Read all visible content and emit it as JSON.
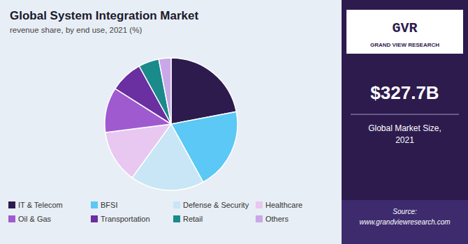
{
  "chart_data": {
    "type": "pie",
    "title": "Global System Integration Market",
    "subtitle": "revenue share, by end use, 2021 (%)",
    "categories": [
      "IT & Telecom",
      "BFSI",
      "Defense & Security",
      "Healthcare",
      "Oil & Gas",
      "Transportation",
      "Retail",
      "Others"
    ],
    "values": [
      22,
      20,
      18,
      13,
      11,
      8,
      5,
      3
    ],
    "colors": [
      "#2d1b4e",
      "#5bc8f5",
      "#c8e6f5",
      "#e8c8f0",
      "#a05ad0",
      "#6a2fa0",
      "#1a8a8a",
      "#c8a8e8"
    ],
    "legend": "bottom",
    "annotations": [
      "GVR",
      "GRAND VIEW RESEARCH",
      "$327.7B",
      "Global Market Size,\n2021",
      "Source:\nwww.grandviewresearch.com"
    ]
  }
}
